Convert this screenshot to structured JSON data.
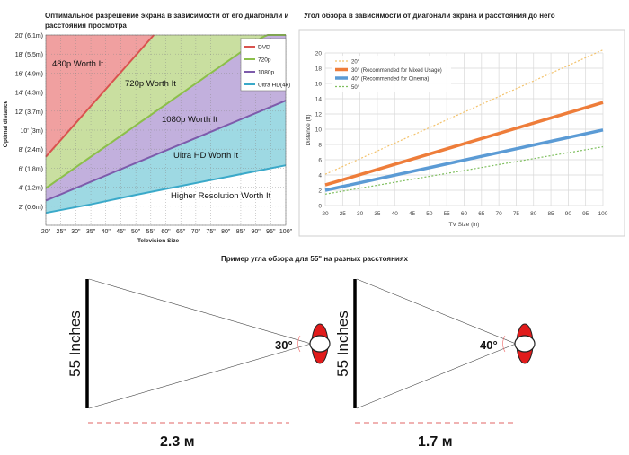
{
  "left_title": "Оптимальное разрешение экрана в зависимости от его диагонали и расстояния просмотра",
  "right_title": "Угол обзора в зависимости от диагонали экрана и расстояния до него",
  "bottom_title": "Пример угла обзора для 55\" на разных расстояниях",
  "colors": {
    "red_region": "#f0a0a0",
    "green_region": "#c9dfa0",
    "purple_region": "#c2b0dd",
    "cyan_region": "#9ed9e3",
    "dvd": "#d9534f",
    "p720": "#8cbf4a",
    "p1080": "#7d5bab",
    "uhd": "#3aa9c9",
    "s20": "#f3c26b",
    "s30": "#ee7d3a",
    "s40": "#5b9bd5",
    "s50": "#7fbf5f"
  },
  "chart_data": [
    {
      "type": "area",
      "title": "Оптимальное разрешение экрана в зависимости от его диагонали и расстояния просмотра",
      "xlabel": "Television Size",
      "ylabel": "Optimal distance",
      "x_ticks": [
        "20\"",
        "25\"",
        "30\"",
        "35\"",
        "40\"",
        "45\"",
        "50\"",
        "55\"",
        "60\"",
        "65\"",
        "70\"",
        "75\"",
        "80\"",
        "85\"",
        "90\"",
        "95\"",
        "100\""
      ],
      "y_ticks": [
        "2' (0.6m)",
        "4' (1.2m)",
        "6' (1.8m)",
        "8' (2.4m)",
        "10' (3m)",
        "12' (3.7m)",
        "14' (4.3m)",
        "16' (4.9m)",
        "18' (5.5m)",
        "20' (6.1m)"
      ],
      "xlim": [
        20,
        100
      ],
      "ylim": [
        0,
        20
      ],
      "series": [
        {
          "name": "DVD",
          "x": [
            20,
            56
          ],
          "y": [
            7.2,
            20
          ]
        },
        {
          "name": "720p",
          "x": [
            20,
            100
          ],
          "y": [
            3.9,
            21.5
          ]
        },
        {
          "name": "1080p",
          "x": [
            20,
            100
          ],
          "y": [
            2.6,
            13.1
          ]
        },
        {
          "name": "Ultra HD(4k)",
          "x": [
            20,
            35,
            50,
            100
          ],
          "y": [
            1.3,
            2.2,
            3.2,
            6.3
          ]
        }
      ],
      "region_labels": [
        "480p Worth It",
        "720p Worth It",
        "1080p Worth It",
        "Ultra HD Worth It",
        "Higher Resolution Worth It"
      ],
      "legend_position": "top-right"
    },
    {
      "type": "line",
      "title": "Угол обзора в зависимости от диагонали экрана и расстояния до него",
      "xlabel": "TV Size (in)",
      "ylabel": "Distance (ft)",
      "xlim": [
        20,
        100
      ],
      "ylim": [
        0,
        20
      ],
      "x_ticks": [
        20,
        25,
        30,
        35,
        40,
        45,
        50,
        55,
        60,
        65,
        70,
        75,
        80,
        85,
        90,
        95,
        100
      ],
      "y_ticks": [
        0,
        2,
        4,
        6,
        8,
        10,
        12,
        14,
        16,
        18,
        20
      ],
      "grid": true,
      "series": [
        {
          "name": "20°",
          "x": [
            20,
            100
          ],
          "y": [
            4.1,
            20.4
          ]
        },
        {
          "name": "30° (Recommended for Mixed Usage)",
          "x": [
            20,
            100
          ],
          "y": [
            2.7,
            13.5
          ]
        },
        {
          "name": "40° (Recommended for Cinema)",
          "x": [
            20,
            100
          ],
          "y": [
            2.0,
            9.9
          ]
        },
        {
          "name": "50°",
          "x": [
            20,
            100
          ],
          "y": [
            1.5,
            7.7
          ]
        }
      ],
      "legend_position": "top-left"
    }
  ],
  "diagram": {
    "left": {
      "screen_label": "55 Inches",
      "angle": "30°",
      "distance": "2.3 м"
    },
    "right": {
      "screen_label": "55 Inches",
      "angle": "40°",
      "distance": "1.7 м"
    }
  }
}
